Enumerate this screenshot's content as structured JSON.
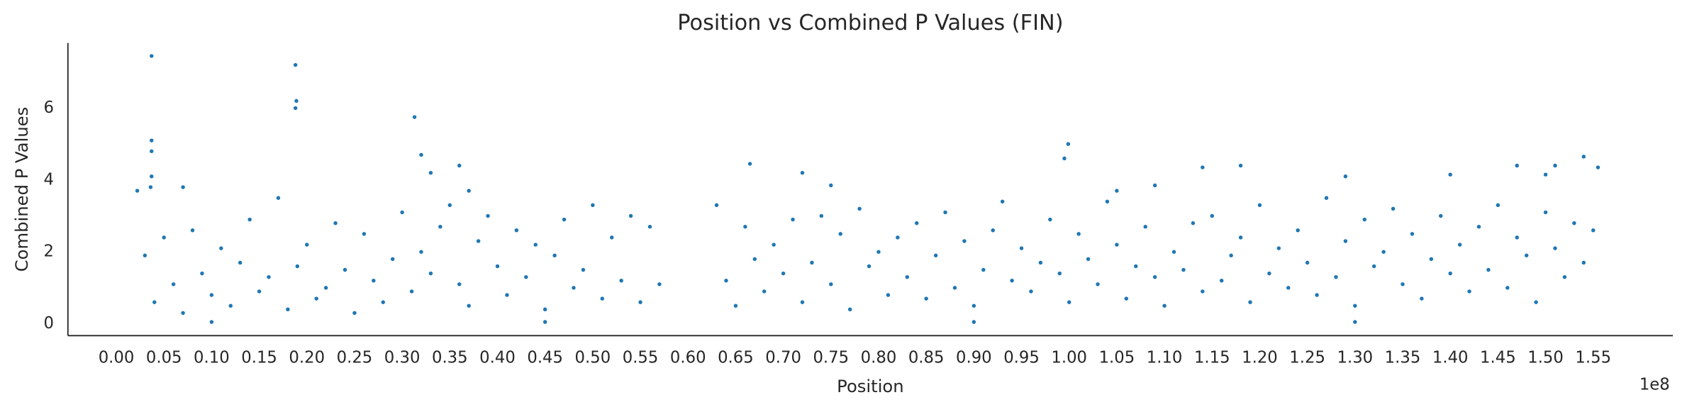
{
  "chart_data": {
    "type": "scatter",
    "title": "Position vs Combined P Values (FIN)",
    "x_label": "Position",
    "y_label": "Combined P Values",
    "x_offset_label": "1e8",
    "color": "#1f77b4",
    "grid": false,
    "xlim": [
      -5080000,
      163360000
    ],
    "ylim": [
      -0.33,
      7.81
    ],
    "yticks": [
      0,
      2,
      4,
      6
    ],
    "xticks": [
      {
        "value": 0,
        "label": "0.00"
      },
      {
        "value": 5000000,
        "label": "0.05"
      },
      {
        "value": 10000000,
        "label": "0.10"
      },
      {
        "value": 15000000,
        "label": "0.15"
      },
      {
        "value": 20000000,
        "label": "0.20"
      },
      {
        "value": 25000000,
        "label": "0.25"
      },
      {
        "value": 30000000,
        "label": "0.30"
      },
      {
        "value": 35000000,
        "label": "0.35"
      },
      {
        "value": 40000000,
        "label": "0.40"
      },
      {
        "value": 45000000,
        "label": "0.45"
      },
      {
        "value": 50000000,
        "label": "0.50"
      },
      {
        "value": 55000000,
        "label": "0.55"
      },
      {
        "value": 60000000,
        "label": "0.60"
      },
      {
        "value": 65000000,
        "label": "0.65"
      },
      {
        "value": 70000000,
        "label": "0.70"
      },
      {
        "value": 75000000,
        "label": "0.75"
      },
      {
        "value": 80000000,
        "label": "0.80"
      },
      {
        "value": 85000000,
        "label": "0.85"
      },
      {
        "value": 90000000,
        "label": "0.90"
      },
      {
        "value": 95000000,
        "label": "0.95"
      },
      {
        "value": 100000000,
        "label": "1.00"
      },
      {
        "value": 105000000,
        "label": "1.05"
      },
      {
        "value": 110000000,
        "label": "1.10"
      },
      {
        "value": 115000000,
        "label": "1.15"
      },
      {
        "value": 120000000,
        "label": "1.20"
      },
      {
        "value": 125000000,
        "label": "1.25"
      },
      {
        "value": 130000000,
        "label": "1.30"
      },
      {
        "value": 135000000,
        "label": "1.35"
      },
      {
        "value": 140000000,
        "label": "1.40"
      },
      {
        "value": 145000000,
        "label": "1.45"
      },
      {
        "value": 150000000,
        "label": "1.50"
      },
      {
        "value": 155000000,
        "label": "1.55"
      }
    ],
    "x": [
      3700000,
      3700000,
      3700000,
      3700000,
      3600000,
      2200000,
      7000000,
      18800000,
      18900000,
      18800000,
      31300000,
      32000000,
      33000000,
      36000000,
      37000000,
      66500000,
      72000000,
      75000000,
      99900000,
      99500000,
      105000000,
      109000000,
      114000000,
      118000000,
      129000000,
      140000000,
      147000000,
      151000000,
      150000000,
      154000000,
      155500000,
      10000000,
      45000000,
      90000000,
      130000000,
      3000000,
      4000000,
      5000000,
      6000000,
      7000000,
      8000000,
      9000000,
      10000000,
      11000000,
      12000000,
      13000000,
      14000000,
      15000000,
      16000000,
      17000000,
      18000000,
      19000000,
      20000000,
      21000000,
      22000000,
      23000000,
      24000000,
      25000000,
      26000000,
      27000000,
      28000000,
      29000000,
      30000000,
      31000000,
      32000000,
      33000000,
      34000000,
      35000000,
      36000000,
      37000000,
      38000000,
      39000000,
      40000000,
      41000000,
      42000000,
      43000000,
      44000000,
      45000000,
      46000000,
      47000000,
      48000000,
      49000000,
      50000000,
      51000000,
      52000000,
      53000000,
      54000000,
      55000000,
      56000000,
      57000000,
      63000000,
      64000000,
      65000000,
      66000000,
      67000000,
      68000000,
      69000000,
      70000000,
      71000000,
      72000000,
      73000000,
      74000000,
      75000000,
      76000000,
      77000000,
      78000000,
      79000000,
      80000000,
      81000000,
      82000000,
      83000000,
      84000000,
      85000000,
      86000000,
      87000000,
      88000000,
      89000000,
      90000000,
      91000000,
      92000000,
      93000000,
      94000000,
      95000000,
      96000000,
      97000000,
      98000000,
      99000000,
      100000000,
      101000000,
      102000000,
      103000000,
      104000000,
      105000000,
      106000000,
      107000000,
      108000000,
      109000000,
      110000000,
      111000000,
      112000000,
      113000000,
      114000000,
      115000000,
      116000000,
      117000000,
      118000000,
      119000000,
      120000000,
      121000000,
      122000000,
      123000000,
      124000000,
      125000000,
      126000000,
      127000000,
      128000000,
      129000000,
      130000000,
      131000000,
      132000000,
      133000000,
      134000000,
      135000000,
      136000000,
      137000000,
      138000000,
      139000000,
      140000000,
      141000000,
      142000000,
      143000000,
      144000000,
      145000000,
      146000000,
      147000000,
      148000000,
      149000000,
      150000000,
      151000000,
      152000000,
      153000000,
      154000000,
      155000000
    ],
    "values": [
      7.45,
      5.1,
      4.8,
      4.1,
      3.8,
      3.7,
      3.8,
      7.2,
      6.2,
      6.0,
      5.75,
      4.7,
      4.2,
      4.4,
      3.7,
      4.45,
      4.2,
      3.85,
      5.0,
      4.6,
      3.7,
      3.85,
      4.35,
      4.4,
      4.1,
      4.15,
      4.4,
      4.4,
      4.15,
      4.65,
      4.35,
      0.05,
      0.05,
      0.05,
      0.05,
      1.9,
      0.6,
      2.4,
      1.1,
      0.3,
      2.6,
      1.4,
      0.8,
      2.1,
      0.5,
      1.7,
      2.9,
      0.9,
      1.3,
      3.5,
      0.4,
      1.6,
      2.2,
      0.7,
      1.0,
      2.8,
      1.5,
      0.3,
      2.5,
      1.2,
      0.6,
      1.8,
      3.1,
      0.9,
      2.0,
      1.4,
      2.7,
      3.3,
      1.1,
      0.5,
      2.3,
      3.0,
      1.6,
      0.8,
      2.6,
      1.3,
      2.2,
      0.4,
      1.9,
      2.9,
      1.0,
      1.5,
      3.3,
      0.7,
      2.4,
      1.2,
      3.0,
      0.6,
      2.7,
      1.1,
      3.3,
      1.2,
      0.5,
      2.7,
      1.8,
      0.9,
      2.2,
      1.4,
      2.9,
      0.6,
      1.7,
      3.0,
      1.1,
      2.5,
      0.4,
      3.2,
      1.6,
      2.0,
      0.8,
      2.4,
      1.3,
      2.8,
      0.7,
      1.9,
      3.1,
      1.0,
      2.3,
      0.5,
      1.5,
      2.6,
      3.4,
      1.2,
      2.1,
      0.9,
      1.7,
      2.9,
      1.4,
      0.6,
      2.5,
      1.8,
      1.1,
      3.4,
      2.2,
      0.7,
      1.6,
      2.7,
      1.3,
      0.5,
      2.0,
      1.5,
      2.8,
      0.9,
      3.0,
      1.2,
      1.9,
      2.4,
      0.6,
      3.3,
      1.4,
      2.1,
      1.0,
      2.6,
      1.7,
      0.8,
      3.5,
      1.3,
      2.3,
      0.5,
      2.9,
      1.6,
      2.0,
      3.2,
      1.1,
      2.5,
      0.7,
      1.8,
      3.0,
      1.4,
      2.2,
      0.9,
      2.7,
      1.5,
      3.3,
      1.0,
      2.4,
      1.9,
      0.6,
      3.1,
      2.1,
      1.3,
      2.8,
      1.7,
      2.6
    ]
  }
}
